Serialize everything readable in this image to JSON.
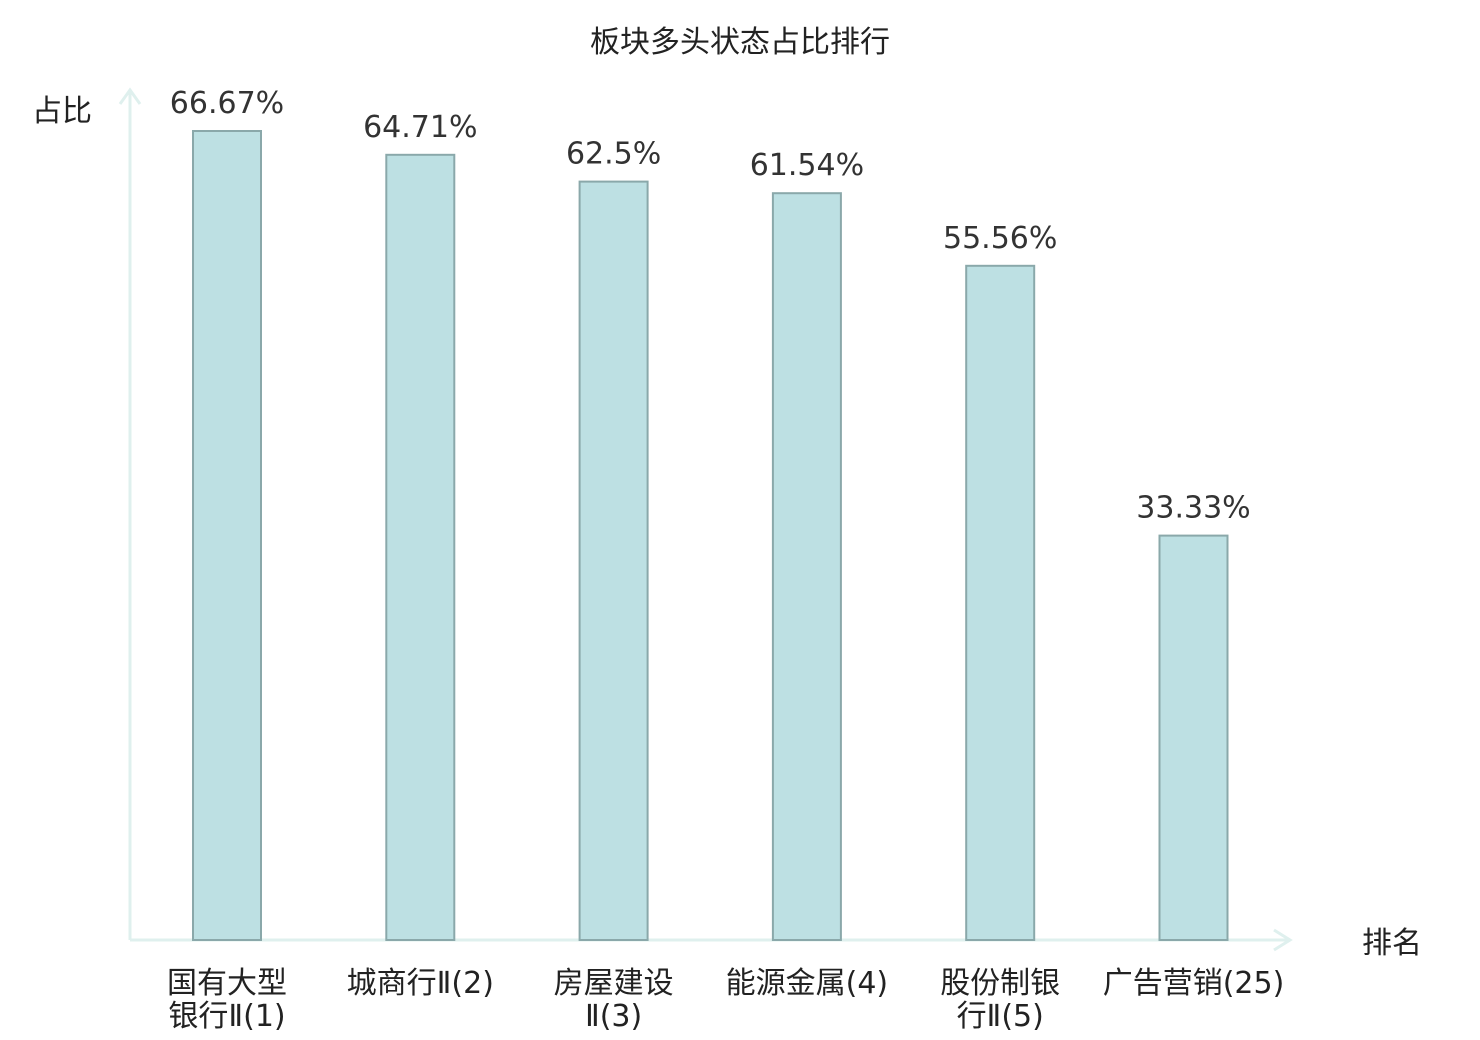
{
  "chart_data": {
    "type": "bar",
    "title": "板块多头状态占比排行",
    "ylabel": "占比",
    "xlabel": "排名",
    "categories": [
      [
        "国有大型",
        "银行Ⅱ(1)"
      ],
      [
        "城商行Ⅱ(2)"
      ],
      [
        "房屋建设",
        "Ⅱ(3)"
      ],
      [
        "能源金属(4)"
      ],
      [
        "股份制银",
        "行Ⅱ(5)"
      ],
      [
        "广告营销(25)"
      ]
    ],
    "values": [
      66.67,
      64.71,
      62.5,
      61.54,
      55.56,
      33.33
    ],
    "value_labels": [
      "66.67%",
      "64.71%",
      "62.5%",
      "61.54%",
      "55.56%",
      "33.33%"
    ],
    "highlight_index": 5,
    "ylim": [
      0,
      66.67
    ],
    "grid": false,
    "legend": "none",
    "colors": {
      "bar_fill": "#bde0e3",
      "bar_stroke": "#8aa8aa",
      "axis": "#dff0ee",
      "text": "#222222",
      "highlight_text": "#e02020"
    }
  }
}
